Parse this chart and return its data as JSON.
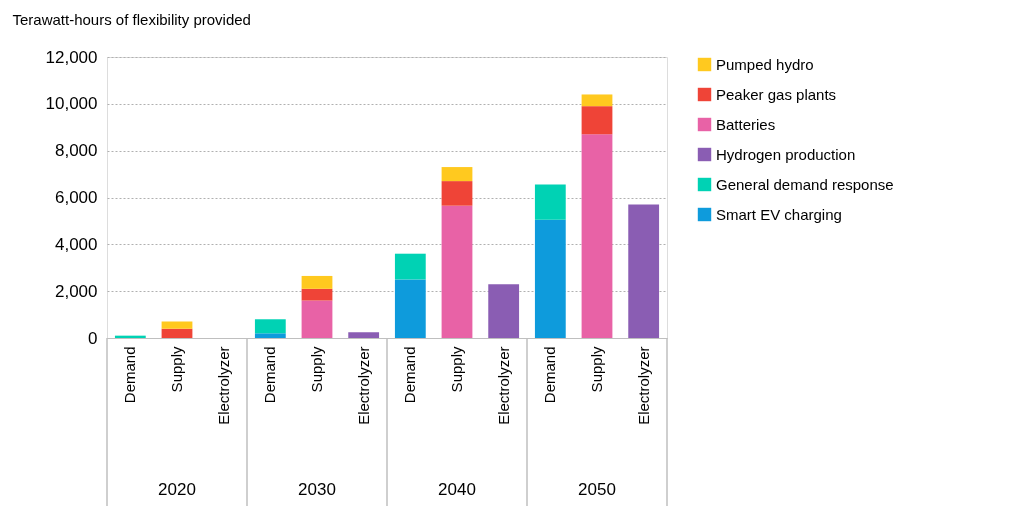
{
  "chart_data": {
    "type": "bar",
    "stacked": true,
    "ylabel": "Terawatt-hours of flexibility provided",
    "categories": [
      "Demand",
      "Supply",
      "Electrolyzer",
      "Demand",
      "Supply",
      "Electrolyzer",
      "Demand",
      "Supply",
      "Electrolyzer",
      "Demand",
      "Supply",
      "Electrolyzer"
    ],
    "annotations": [
      "2020",
      "2030",
      "2040",
      "2050"
    ],
    "series": [
      {
        "name": "Smart EV charging",
        "color": "#0e9bdc",
        "values": [
          null,
          null,
          null,
          200,
          null,
          null,
          2500,
          null,
          null,
          5050,
          null,
          null
        ]
      },
      {
        "name": "General demand response",
        "color": "#00d2b4",
        "values": [
          100,
          null,
          null,
          600,
          null,
          null,
          1100,
          null,
          null,
          1500,
          null,
          null
        ]
      },
      {
        "name": "Hydrogen production",
        "color": "#8a5db3",
        "values": [
          null,
          null,
          null,
          null,
          null,
          250,
          null,
          null,
          2300,
          null,
          null,
          5700
        ]
      },
      {
        "name": "Batteries",
        "color": "#e862a6",
        "values": [
          null,
          null,
          null,
          null,
          1600,
          null,
          null,
          5650,
          null,
          null,
          8700,
          null
        ]
      },
      {
        "name": "Peaker gas plants",
        "color": "#ef4437",
        "values": [
          null,
          400,
          null,
          null,
          500,
          null,
          null,
          1050,
          null,
          null,
          1200,
          null
        ]
      },
      {
        "name": "Pumped hydro",
        "color": "#ffc91f",
        "values": [
          null,
          300,
          null,
          null,
          550,
          null,
          null,
          600,
          null,
          null,
          500,
          null
        ]
      }
    ],
    "ylim": [
      0,
      12000
    ],
    "yticks": [
      0,
      {
        "value": 2000,
        "label": "2,000"
      },
      {
        "value": 4000,
        "label": "4,000"
      },
      {
        "value": 6000,
        "label": "6,000"
      },
      {
        "value": 8000,
        "label": "8,000"
      },
      {
        "value": 10000,
        "label": "10,000"
      },
      {
        "value": 12000,
        "label": "12,000"
      }
    ],
    "grid": "y",
    "legend": "right"
  }
}
